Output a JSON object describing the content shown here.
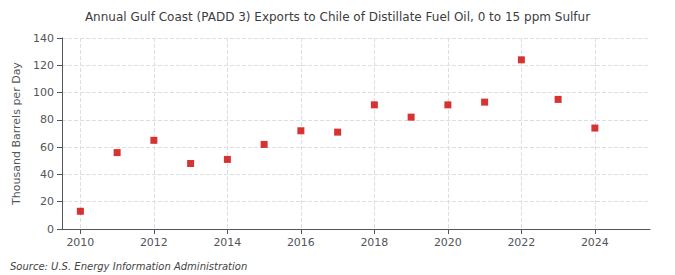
{
  "chart_data": {
    "type": "scatter",
    "title": "Annual Gulf Coast (PADD 3) Exports to Chile of Distillate Fuel Oil, 0 to 15 ppm Sulfur",
    "ylabel": "Thousand Barrels per Day",
    "annotations": [
      "Source: U.S. Energy Information Administration"
    ],
    "x": [
      2010,
      2011,
      2012,
      2013,
      2014,
      2015,
      2016,
      2017,
      2018,
      2019,
      2020,
      2021,
      2022,
      2023,
      2024
    ],
    "values": [
      13,
      56,
      65,
      48,
      51,
      62,
      72,
      71,
      91,
      82,
      91,
      93,
      124,
      95,
      74
    ],
    "color": "#cc0000",
    "marker": "square",
    "xlim": [
      2009.5,
      2025.5
    ],
    "xticks": [
      2010,
      2012,
      2014,
      2016,
      2018,
      2020,
      2022,
      2024
    ],
    "ylim": [
      0,
      140
    ],
    "yticks": [
      0,
      20,
      40,
      60,
      80,
      100,
      120,
      140
    ],
    "grid": true
  }
}
